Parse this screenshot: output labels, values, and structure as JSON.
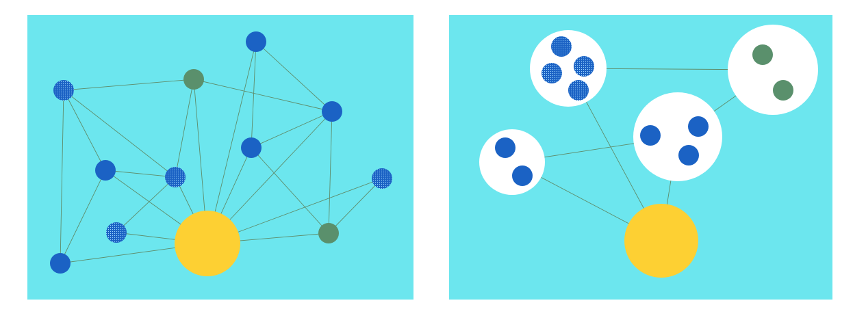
{
  "colors": {
    "background": "#6ce6ee",
    "edge": "#5e8c6a",
    "blue_node": "#1b62c4",
    "green_node": "#5a906c",
    "hub_node": "#fdd033",
    "cluster": "#ffffff"
  },
  "left_graph": {
    "nodes": [
      {
        "id": "hub",
        "kind": "hub"
      },
      {
        "id": "n1",
        "kind": "blue-dotted"
      },
      {
        "id": "n2",
        "kind": "green"
      },
      {
        "id": "n3",
        "kind": "blue"
      },
      {
        "id": "n4",
        "kind": "blue"
      },
      {
        "id": "n5",
        "kind": "blue"
      },
      {
        "id": "n6",
        "kind": "blue"
      },
      {
        "id": "n7",
        "kind": "blue-dotted"
      },
      {
        "id": "n8",
        "kind": "blue-dotted"
      },
      {
        "id": "n9",
        "kind": "blue-dotted"
      },
      {
        "id": "n10",
        "kind": "green"
      },
      {
        "id": "n11",
        "kind": "blue"
      }
    ],
    "edges": [
      [
        "n1",
        "n2"
      ],
      [
        "n1",
        "n5"
      ],
      [
        "n1",
        "n7"
      ],
      [
        "n1",
        "n11"
      ],
      [
        "n2",
        "n4"
      ],
      [
        "n2",
        "n7"
      ],
      [
        "n2",
        "hub"
      ],
      [
        "n3",
        "n4"
      ],
      [
        "n3",
        "hub"
      ],
      [
        "n3",
        "n6"
      ],
      [
        "n4",
        "n6"
      ],
      [
        "n4",
        "n10"
      ],
      [
        "n4",
        "hub"
      ],
      [
        "n5",
        "n7"
      ],
      [
        "n5",
        "n11"
      ],
      [
        "n5",
        "hub"
      ],
      [
        "n6",
        "hub"
      ],
      [
        "n6",
        "n10"
      ],
      [
        "n7",
        "n8"
      ],
      [
        "n7",
        "hub"
      ],
      [
        "n8",
        "hub"
      ],
      [
        "n9",
        "hub"
      ],
      [
        "n9",
        "n10"
      ],
      [
        "n10",
        "hub"
      ],
      [
        "n11",
        "hub"
      ]
    ]
  },
  "right_graph": {
    "clusters": [
      {
        "id": "c1",
        "members": [
          "blue-dotted",
          "blue-dotted",
          "blue-dotted",
          "blue-dotted"
        ]
      },
      {
        "id": "c2",
        "members": [
          "green",
          "green"
        ]
      },
      {
        "id": "c3",
        "members": [
          "blue",
          "blue",
          "blue"
        ]
      },
      {
        "id": "c4",
        "members": [
          "blue",
          "blue"
        ]
      }
    ],
    "hub": {
      "id": "hub",
      "kind": "hub"
    },
    "edges": [
      [
        "c1",
        "c2"
      ],
      [
        "c1",
        "hub"
      ],
      [
        "c2",
        "c3"
      ],
      [
        "c3",
        "c4"
      ],
      [
        "c3",
        "hub"
      ],
      [
        "c4",
        "hub"
      ]
    ]
  }
}
